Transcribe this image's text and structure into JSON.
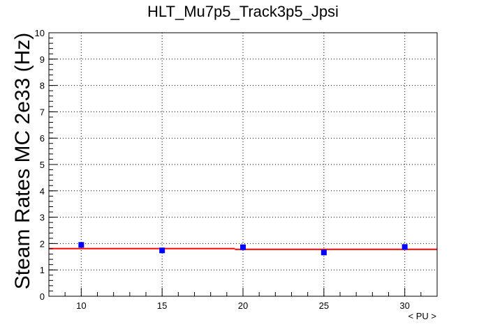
{
  "chart_data": {
    "type": "scatter",
    "title": "HLT_Mu7p5_Track3p5_Jpsi",
    "xlabel": "< PU >",
    "ylabel": "Steam Rates MC 2e33 (Hz)",
    "xlim": [
      8,
      32
    ],
    "ylim": [
      0,
      10
    ],
    "x_ticks": [
      "10",
      "15",
      "20",
      "25",
      "30"
    ],
    "y_ticks": [
      "0",
      "1",
      "2",
      "3",
      "4",
      "5",
      "6",
      "7",
      "8",
      "9",
      "10"
    ],
    "grid": true,
    "series": [
      {
        "marker": "square",
        "color": "#0000ff",
        "x": [
          10,
          15,
          20,
          25,
          30
        ],
        "y": [
          1.95,
          1.74,
          1.86,
          1.66,
          1.87
        ]
      }
    ],
    "fit": {
      "color": "#ff0000",
      "segments": [
        {
          "x": [
            8,
            19.5
          ],
          "y": [
            1.81,
            1.81
          ]
        },
        {
          "x": [
            19.5,
            32
          ],
          "y": [
            1.78,
            1.78
          ]
        }
      ]
    }
  }
}
